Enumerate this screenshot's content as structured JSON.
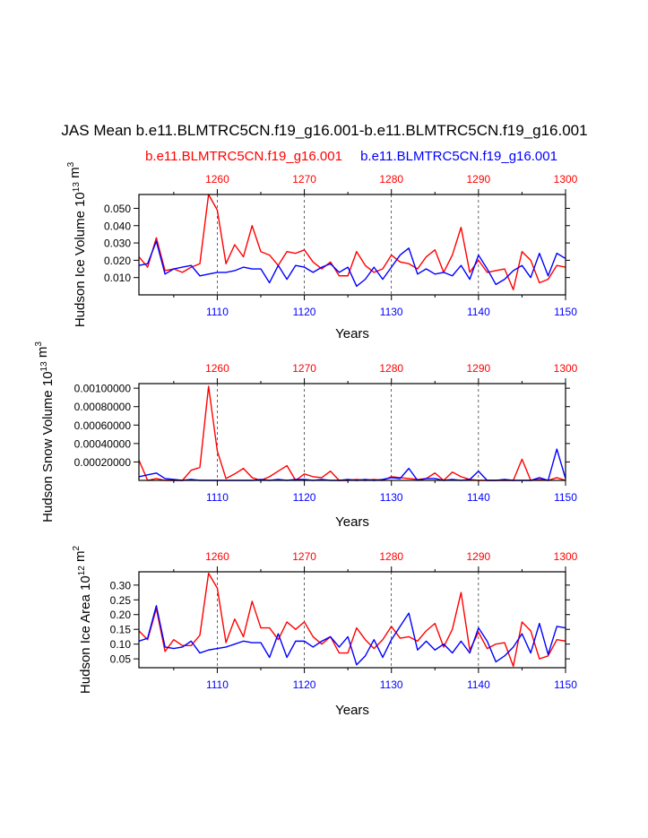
{
  "header": {
    "title": "JAS Mean b.e11.BLMTRC5CN.f19_g16.001-b.e11.BLMTRC5CN.f19_g16.001",
    "left_case": "b.e11.BLMTRC5CN.f19_g16.001",
    "right_case": "b.e11.BLMTRC5CN.f19_g16.001"
  },
  "colors": {
    "red_series": "#ff0000",
    "blue_series": "#0000ff",
    "axis": "#000000",
    "gridline": "#000000"
  },
  "chart_data": [
    {
      "type": "line",
      "ylabel": "Hudson Ice Volume 10^13 m^3",
      "xlabel": "Years",
      "xlim_bottom": [
        1101,
        1150
      ],
      "xlim_top": [
        1251,
        1300
      ],
      "ylim": [
        0.0,
        0.058
      ],
      "yticks": [
        "0.050",
        "0.040",
        "0.030",
        "0.020",
        "0.010"
      ],
      "ytick_values": [
        0.05,
        0.04,
        0.03,
        0.02,
        0.01
      ],
      "xticks_bottom": [
        "1110",
        "1120",
        "1130",
        "1140",
        "1150"
      ],
      "xtick_values_bottom": [
        1110,
        1120,
        1130,
        1140,
        1150
      ],
      "xticks_top": [
        "1260",
        "1270",
        "1280",
        "1290",
        "1300"
      ],
      "xtick_values_top": [
        1260,
        1270,
        1280,
        1290,
        1300
      ],
      "grid": "vertical dashed at 1110, 1120, 1130, 1140",
      "series": [
        {
          "axis": "top",
          "color": "red",
          "x": [
            1251,
            1252,
            1253,
            1254,
            1255,
            1256,
            1257,
            1258,
            1259,
            1260,
            1261,
            1262,
            1263,
            1264,
            1265,
            1266,
            1267,
            1268,
            1269,
            1270,
            1271,
            1272,
            1273,
            1274,
            1275,
            1276,
            1277,
            1278,
            1279,
            1280,
            1281,
            1282,
            1283,
            1284,
            1285,
            1286,
            1287,
            1288,
            1289,
            1290,
            1291,
            1292,
            1293,
            1294,
            1295,
            1296,
            1297,
            1298,
            1299,
            1300
          ],
          "values": [
            0.022,
            0.016,
            0.033,
            0.014,
            0.015,
            0.013,
            0.016,
            0.018,
            0.058,
            0.049,
            0.018,
            0.029,
            0.022,
            0.04,
            0.025,
            0.023,
            0.017,
            0.025,
            0.024,
            0.026,
            0.019,
            0.015,
            0.019,
            0.011,
            0.011,
            0.025,
            0.017,
            0.013,
            0.015,
            0.023,
            0.019,
            0.018,
            0.015,
            0.022,
            0.026,
            0.013,
            0.023,
            0.039,
            0.013,
            0.02,
            0.013,
            0.014,
            0.015,
            0.003,
            0.025,
            0.02,
            0.007,
            0.009,
            0.017,
            0.016
          ]
        },
        {
          "axis": "bottom",
          "color": "blue",
          "x": [
            1101,
            1102,
            1103,
            1104,
            1105,
            1106,
            1107,
            1108,
            1109,
            1110,
            1111,
            1112,
            1113,
            1114,
            1115,
            1116,
            1117,
            1118,
            1119,
            1120,
            1121,
            1122,
            1123,
            1124,
            1125,
            1126,
            1127,
            1128,
            1129,
            1130,
            1131,
            1132,
            1133,
            1134,
            1135,
            1136,
            1137,
            1138,
            1139,
            1140,
            1141,
            1142,
            1143,
            1144,
            1145,
            1146,
            1147,
            1148,
            1149,
            1150
          ],
          "values": [
            0.017,
            0.018,
            0.031,
            0.012,
            0.015,
            0.016,
            0.017,
            0.011,
            0.012,
            0.013,
            0.013,
            0.014,
            0.016,
            0.015,
            0.015,
            0.007,
            0.017,
            0.009,
            0.017,
            0.016,
            0.013,
            0.016,
            0.018,
            0.013,
            0.016,
            0.005,
            0.009,
            0.016,
            0.009,
            0.016,
            0.023,
            0.027,
            0.012,
            0.015,
            0.012,
            0.013,
            0.011,
            0.017,
            0.009,
            0.023,
            0.015,
            0.006,
            0.009,
            0.014,
            0.017,
            0.01,
            0.024,
            0.011,
            0.024,
            0.021
          ]
        }
      ]
    },
    {
      "type": "line",
      "ylabel": "Hudson Snow Volume 10^13 m^3",
      "xlabel": "Years",
      "xlim_bottom": [
        1101,
        1150
      ],
      "xlim_top": [
        1251,
        1300
      ],
      "ylim": [
        0.0,
        0.00105
      ],
      "yticks": [
        "0.00100000",
        "0.00080000",
        "0.00060000",
        "0.00040000",
        "0.00020000"
      ],
      "ytick_values": [
        0.001,
        0.0008,
        0.0006,
        0.0004,
        0.0002
      ],
      "xticks_bottom": [
        "1110",
        "1120",
        "1130",
        "1140",
        "1150"
      ],
      "xtick_values_bottom": [
        1110,
        1120,
        1130,
        1140,
        1150
      ],
      "xticks_top": [
        "1260",
        "1270",
        "1280",
        "1290",
        "1300"
      ],
      "xtick_values_top": [
        1260,
        1270,
        1280,
        1290,
        1300
      ],
      "grid": "vertical dashed at 1110, 1120, 1130, 1140",
      "series": [
        {
          "axis": "top",
          "color": "red",
          "x": [
            1251,
            1252,
            1253,
            1254,
            1255,
            1256,
            1257,
            1258,
            1259,
            1260,
            1261,
            1262,
            1263,
            1264,
            1265,
            1266,
            1267,
            1268,
            1269,
            1270,
            1271,
            1272,
            1273,
            1274,
            1275,
            1276,
            1277,
            1278,
            1279,
            1280,
            1281,
            1282,
            1283,
            1284,
            1285,
            1286,
            1287,
            1288,
            1289,
            1290,
            1291,
            1292,
            1293,
            1294,
            1295,
            1296,
            1297,
            1298,
            1299,
            1300
          ],
          "values": [
            0.00022,
            0.0,
            2e-05,
            0.0,
            0.0,
            0.0,
            0.00011,
            0.00014,
            0.00102,
            0.00032,
            2e-05,
            7e-05,
            0.00013,
            3e-05,
            0.0,
            4e-05,
            0.0001,
            0.00016,
            0.0,
            7e-05,
            4e-05,
            3e-05,
            0.0001,
            0.0,
            0.0,
            1e-05,
            0.0,
            1e-05,
            0.0,
            4e-05,
            3e-05,
            2e-05,
            1e-05,
            2e-05,
            8e-05,
            0.0,
            9e-05,
            4e-05,
            1e-05,
            0.0,
            0.0,
            0.0,
            0.0,
            0.0,
            0.00023,
            0.0,
            1e-05,
            0.0,
            3e-05,
            0.0
          ]
        },
        {
          "axis": "bottom",
          "color": "blue",
          "x": [
            1101,
            1102,
            1103,
            1104,
            1105,
            1106,
            1107,
            1108,
            1109,
            1110,
            1111,
            1112,
            1113,
            1114,
            1115,
            1116,
            1117,
            1118,
            1119,
            1120,
            1121,
            1122,
            1123,
            1124,
            1125,
            1126,
            1127,
            1128,
            1129,
            1130,
            1131,
            1132,
            1133,
            1134,
            1135,
            1136,
            1137,
            1138,
            1139,
            1140,
            1141,
            1142,
            1143,
            1144,
            1145,
            1146,
            1147,
            1148,
            1149,
            1150
          ],
          "values": [
            4e-05,
            6e-05,
            8e-05,
            2e-05,
            1e-05,
            0.0,
            1e-05,
            0.0,
            0.0,
            0.0,
            0.0,
            0.0,
            0.0,
            0.0,
            1e-05,
            0.0,
            1e-05,
            0.0,
            1e-05,
            1e-05,
            0.0,
            1e-05,
            0.0,
            0.0,
            1e-05,
            0.0,
            1e-05,
            0.0,
            1e-05,
            3e-05,
            2e-05,
            0.00013,
            0.0,
            2e-05,
            2e-05,
            0.0,
            1e-05,
            0.0,
            1e-05,
            0.0001,
            0.0,
            0.0,
            1e-05,
            0.0,
            0.0,
            0.0,
            3e-05,
            0.0,
            0.00034,
            2e-05
          ]
        }
      ]
    },
    {
      "type": "line",
      "ylabel": "Hudson Ice Area 10^12 m^2",
      "xlabel": "Years",
      "xlim_bottom": [
        1101,
        1150
      ],
      "xlim_top": [
        1251,
        1300
      ],
      "ylim": [
        0.02,
        0.345
      ],
      "yticks": [
        "0.30",
        "0.25",
        "0.20",
        "0.15",
        "0.10",
        "0.05"
      ],
      "ytick_values": [
        0.3,
        0.25,
        0.2,
        0.15,
        0.1,
        0.05
      ],
      "xticks_bottom": [
        "1110",
        "1120",
        "1130",
        "1140",
        "1150"
      ],
      "xtick_values_bottom": [
        1110,
        1120,
        1130,
        1140,
        1150
      ],
      "xticks_top": [
        "1260",
        "1270",
        "1280",
        "1290",
        "1300"
      ],
      "xtick_values_top": [
        1260,
        1270,
        1280,
        1290,
        1300
      ],
      "grid": "vertical dashed at 1110, 1120, 1130, 1140",
      "series": [
        {
          "axis": "top",
          "color": "red",
          "x": [
            1251,
            1252,
            1253,
            1254,
            1255,
            1256,
            1257,
            1258,
            1259,
            1260,
            1261,
            1262,
            1263,
            1264,
            1265,
            1266,
            1267,
            1268,
            1269,
            1270,
            1271,
            1272,
            1273,
            1274,
            1275,
            1276,
            1277,
            1278,
            1279,
            1280,
            1281,
            1282,
            1283,
            1284,
            1285,
            1286,
            1287,
            1288,
            1289,
            1290,
            1291,
            1292,
            1293,
            1294,
            1295,
            1296,
            1297,
            1298,
            1299,
            1300
          ],
          "values": [
            0.145,
            0.115,
            0.22,
            0.075,
            0.115,
            0.095,
            0.095,
            0.13,
            0.34,
            0.29,
            0.105,
            0.185,
            0.125,
            0.245,
            0.155,
            0.155,
            0.115,
            0.175,
            0.15,
            0.175,
            0.125,
            0.1,
            0.125,
            0.07,
            0.07,
            0.155,
            0.115,
            0.085,
            0.115,
            0.16,
            0.12,
            0.125,
            0.11,
            0.145,
            0.17,
            0.09,
            0.15,
            0.275,
            0.08,
            0.14,
            0.085,
            0.1,
            0.105,
            0.025,
            0.175,
            0.145,
            0.05,
            0.06,
            0.115,
            0.11
          ]
        },
        {
          "axis": "bottom",
          "color": "blue",
          "x": [
            1101,
            1102,
            1103,
            1104,
            1105,
            1106,
            1107,
            1108,
            1109,
            1110,
            1111,
            1112,
            1113,
            1114,
            1115,
            1116,
            1117,
            1118,
            1119,
            1120,
            1121,
            1122,
            1123,
            1124,
            1125,
            1126,
            1127,
            1128,
            1129,
            1130,
            1131,
            1132,
            1133,
            1134,
            1135,
            1136,
            1137,
            1138,
            1139,
            1140,
            1141,
            1142,
            1143,
            1144,
            1145,
            1146,
            1147,
            1148,
            1149,
            1150
          ],
          "values": [
            0.11,
            0.12,
            0.23,
            0.09,
            0.085,
            0.09,
            0.11,
            0.07,
            0.08,
            0.085,
            0.09,
            0.1,
            0.11,
            0.105,
            0.105,
            0.055,
            0.135,
            0.055,
            0.11,
            0.11,
            0.09,
            0.11,
            0.125,
            0.09,
            0.125,
            0.03,
            0.06,
            0.115,
            0.055,
            0.115,
            0.16,
            0.205,
            0.08,
            0.11,
            0.08,
            0.1,
            0.07,
            0.11,
            0.07,
            0.155,
            0.11,
            0.04,
            0.06,
            0.09,
            0.135,
            0.07,
            0.17,
            0.065,
            0.16,
            0.155
          ]
        }
      ]
    }
  ]
}
